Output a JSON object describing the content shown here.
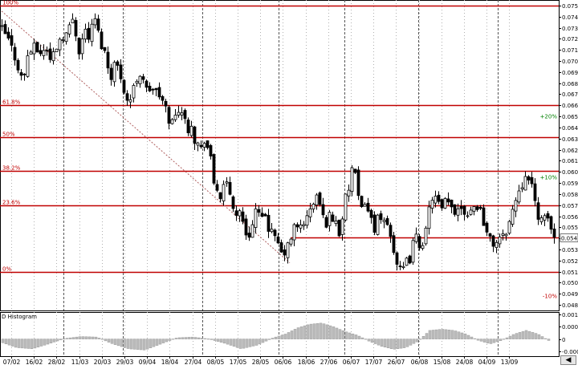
{
  "chart_data": [
    {
      "type": "candlestick",
      "title": "",
      "y_range": [
        0.0475,
        0.0755
      ],
      "y_ticks": [
        "0.075",
        "0.074",
        "0.073",
        "0.072",
        "0.071",
        "0.070",
        "0.069",
        "0.068",
        "0.067",
        "0.066",
        "0.065",
        "0.064",
        "0.063",
        "0.062",
        "0.061",
        "0.060",
        "0.059",
        "0.058",
        "0.057",
        "0.056",
        "0.055",
        "0.054",
        "0.053",
        "0.052",
        "0.051",
        "0.050",
        "0.049",
        "0.048"
      ],
      "x_tick_labels": [
        "07/02",
        "16/02",
        "28/02",
        "11/03",
        "20/03",
        "29/03",
        "09/04",
        "18/04",
        "27/04",
        "08/05",
        "17/05",
        "28/05",
        "06/06",
        "18/06",
        "27/06",
        "06/07",
        "17/07",
        "26/07",
        "06/08",
        "15/08",
        "24/08",
        "04/09",
        "13/09"
      ],
      "last_price": "0.05410",
      "fib_levels": [
        {
          "label": "100%",
          "value": 0.075
        },
        {
          "label": "61.8%",
          "value": 0.066
        },
        {
          "label": "50%",
          "value": 0.0631
        },
        {
          "label": "38.2%",
          "value": 0.0601
        },
        {
          "label": "23.6%",
          "value": 0.057
        },
        {
          "label": "0%",
          "value": 0.051
        }
      ],
      "extra_levels": [
        {
          "value": 0.0541
        }
      ],
      "percent_labels": [
        {
          "label": "+20%",
          "value": 0.065,
          "color": "#008000"
        },
        {
          "label": "+10%",
          "value": 0.0595,
          "color": "#008000"
        },
        {
          "label": "-10%",
          "value": 0.0488,
          "color": "#c00000"
        }
      ],
      "trend_line": {
        "from": [
          2,
          0.0745
        ],
        "to": [
          101,
          0.0518
        ]
      },
      "vertical_guides": [
        79,
        153,
        252,
        347,
        429,
        521,
        620
      ],
      "close_path": [
        [
          0,
          0.073
        ],
        [
          5,
          0.0725
        ],
        [
          8,
          0.0722
        ],
        [
          15,
          0.071
        ],
        [
          20,
          0.07
        ],
        [
          25,
          0.0688
        ],
        [
          28,
          0.068
        ],
        [
          34,
          0.0705
        ],
        [
          40,
          0.0712
        ],
        [
          46,
          0.071
        ],
        [
          52,
          0.0706
        ],
        [
          57,
          0.0715
        ],
        [
          60,
          0.0704
        ],
        [
          64,
          0.0697
        ],
        [
          67,
          0.0712
        ],
        [
          72,
          0.0715
        ],
        [
          76,
          0.0725
        ],
        [
          80,
          0.0722
        ],
        [
          86,
          0.073
        ],
        [
          90,
          0.0738
        ],
        [
          93,
          0.073
        ],
        [
          98,
          0.071
        ],
        [
          102,
          0.072
        ],
        [
          106,
          0.0728
        ],
        [
          110,
          0.0722
        ],
        [
          114,
          0.073
        ],
        [
          118,
          0.0738
        ],
        [
          122,
          0.0725
        ],
        [
          126,
          0.0715
        ],
        [
          130,
          0.0708
        ],
        [
          134,
          0.0695
        ],
        [
          138,
          0.0688
        ],
        [
          143,
          0.07
        ],
        [
          148,
          0.069
        ],
        [
          152,
          0.0683
        ],
        [
          156,
          0.0668
        ],
        [
          160,
          0.0662
        ],
        [
          164,
          0.067
        ],
        [
          168,
          0.068
        ],
        [
          173,
          0.069
        ],
        [
          178,
          0.0685
        ],
        [
          183,
          0.067
        ],
        [
          188,
          0.0678
        ],
        [
          192,
          0.0672
        ],
        [
          197,
          0.067
        ],
        [
          201,
          0.0665
        ],
        [
          205,
          0.0658
        ],
        [
          210,
          0.0648
        ],
        [
          214,
          0.0645
        ],
        [
          218,
          0.065
        ],
        [
          222,
          0.0658
        ],
        [
          226,
          0.0655
        ],
        [
          230,
          0.0645
        ],
        [
          234,
          0.064
        ],
        [
          238,
          0.0645
        ],
        [
          242,
          0.063
        ],
        [
          246,
          0.0625
        ],
        [
          250,
          0.062
        ],
        [
          254,
          0.063
        ],
        [
          258,
          0.0622
        ],
        [
          262,
          0.061
        ],
        [
          266,
          0.059
        ],
        [
          270,
          0.0585
        ],
        [
          274,
          0.0578
        ],
        [
          278,
          0.0584
        ],
        [
          282,
          0.0588
        ],
        [
          286,
          0.058
        ],
        [
          290,
          0.057
        ],
        [
          294,
          0.056
        ],
        [
          298,
          0.0568
        ],
        [
          302,
          0.0552
        ],
        [
          306,
          0.0545
        ],
        [
          310,
          0.0545
        ],
        [
          314,
          0.0552
        ],
        [
          318,
          0.0565
        ],
        [
          322,
          0.056
        ],
        [
          326,
          0.0555
        ],
        [
          330,
          0.0562
        ],
        [
          334,
          0.055
        ],
        [
          338,
          0.0545
        ],
        [
          342,
          0.0538
        ],
        [
          346,
          0.0535
        ],
        [
          350,
          0.0525
        ],
        [
          354,
          0.0528
        ],
        [
          358,
          0.0532
        ],
        [
          362,
          0.054
        ],
        [
          366,
          0.055
        ],
        [
          370,
          0.0548
        ],
        [
          374,
          0.0552
        ],
        [
          378,
          0.0555
        ],
        [
          382,
          0.0558
        ],
        [
          386,
          0.0565
        ],
        [
          390,
          0.0572
        ],
        [
          394,
          0.0578
        ],
        [
          398,
          0.057
        ],
        [
          402,
          0.0558
        ],
        [
          406,
          0.0555
        ],
        [
          410,
          0.056
        ],
        [
          414,
          0.0558
        ],
        [
          418,
          0.0555
        ],
        [
          422,
          0.0545
        ],
        [
          426,
          0.056
        ],
        [
          430,
          0.0575
        ],
        [
          434,
          0.0585
        ],
        [
          438,
          0.0603
        ],
        [
          442,
          0.0595
        ],
        [
          446,
          0.0575
        ],
        [
          450,
          0.0565
        ],
        [
          454,
          0.0575
        ],
        [
          458,
          0.0565
        ],
        [
          462,
          0.0556
        ],
        [
          466,
          0.055
        ],
        [
          470,
          0.0558
        ],
        [
          474,
          0.0552
        ],
        [
          478,
          0.0556
        ],
        [
          482,
          0.0552
        ],
        [
          486,
          0.0545
        ],
        [
          490,
          0.053
        ],
        [
          494,
          0.0518
        ],
        [
          498,
          0.051
        ],
        [
          502,
          0.0512
        ],
        [
          506,
          0.0518
        ],
        [
          510,
          0.0522
        ],
        [
          514,
          0.0535
        ],
        [
          518,
          0.054
        ],
        [
          522,
          0.0535
        ],
        [
          526,
          0.0538
        ],
        [
          530,
          0.0545
        ],
        [
          534,
          0.0565
        ],
        [
          538,
          0.0578
        ],
        [
          542,
          0.0576
        ],
        [
          546,
          0.057
        ],
        [
          550,
          0.0565
        ],
        [
          554,
          0.0572
        ],
        [
          558,
          0.057
        ],
        [
          562,
          0.0568
        ],
        [
          566,
          0.0565
        ],
        [
          570,
          0.0568
        ],
        [
          574,
          0.057
        ],
        [
          578,
          0.0565
        ],
        [
          582,
          0.0563
        ],
        [
          586,
          0.0567
        ],
        [
          590,
          0.0568
        ],
        [
          594,
          0.057
        ],
        [
          598,
          0.0565
        ],
        [
          602,
          0.0556
        ],
        [
          606,
          0.0545
        ],
        [
          610,
          0.0538
        ],
        [
          614,
          0.0535
        ],
        [
          618,
          0.0538
        ],
        [
          622,
          0.054
        ],
        [
          626,
          0.054
        ],
        [
          630,
          0.0548
        ],
        [
          634,
          0.0555
        ],
        [
          638,
          0.0565
        ],
        [
          642,
          0.0575
        ],
        [
          646,
          0.0585
        ],
        [
          650,
          0.059
        ],
        [
          654,
          0.06
        ],
        [
          658,
          0.0592
        ],
        [
          662,
          0.0585
        ],
        [
          666,
          0.0572
        ],
        [
          670,
          0.0562
        ],
        [
          674,
          0.0555
        ],
        [
          678,
          0.0556
        ],
        [
          682,
          0.056
        ],
        [
          686,
          0.0548
        ],
        [
          690,
          0.0541
        ]
      ]
    },
    {
      "type": "bar",
      "title": "D Histogram",
      "y_range": [
        -0.0007,
        0.0011
      ],
      "y_ticks": [
        "0.0010",
        "0.0005",
        "0",
        "-0.0005"
      ],
      "wave": [
        [
          0,
          -0.00012
        ],
        [
          20,
          -0.00035
        ],
        [
          40,
          -0.0004
        ],
        [
          60,
          -0.0002
        ],
        [
          80,
          2e-05
        ],
        [
          100,
          0.0001
        ],
        [
          120,
          8e-05
        ],
        [
          140,
          -0.0002
        ],
        [
          160,
          -0.0004
        ],
        [
          180,
          -0.00045
        ],
        [
          200,
          -0.0002
        ],
        [
          220,
          5e-05
        ],
        [
          240,
          8e-05
        ],
        [
          260,
          0.0
        ],
        [
          280,
          -0.00018
        ],
        [
          300,
          -0.0004
        ],
        [
          320,
          -0.00025
        ],
        [
          340,
          5e-05
        ],
        [
          355,
          0.0002
        ],
        [
          370,
          0.00045
        ],
        [
          385,
          0.0006
        ],
        [
          400,
          0.00065
        ],
        [
          415,
          0.0005
        ],
        [
          430,
          0.0003
        ],
        [
          445,
          0.00015
        ],
        [
          460,
          -0.0001
        ],
        [
          475,
          -0.0003
        ],
        [
          490,
          -0.00042
        ],
        [
          505,
          -0.00035
        ],
        [
          520,
          -0.0001
        ],
        [
          535,
          0.00035
        ],
        [
          550,
          0.0004
        ],
        [
          565,
          0.00035
        ],
        [
          580,
          0.0002
        ],
        [
          595,
          -5e-05
        ],
        [
          610,
          -0.0002
        ],
        [
          625,
          -5e-05
        ],
        [
          640,
          0.0002
        ],
        [
          655,
          0.00035
        ],
        [
          670,
          0.0002
        ],
        [
          686,
          -0.00012
        ]
      ]
    }
  ]
}
